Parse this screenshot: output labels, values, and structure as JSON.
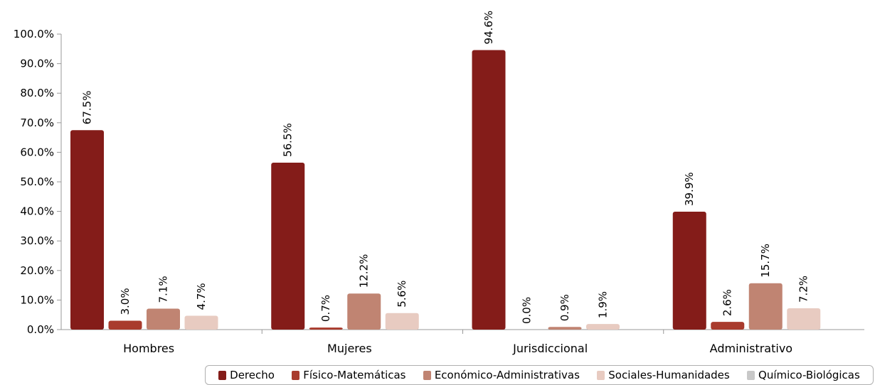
{
  "chart_data": {
    "type": "bar",
    "categories": [
      "Hombres",
      "Mujeres",
      "Jurisdiccional",
      "Administrativo"
    ],
    "series": [
      {
        "name": "Derecho",
        "color": "#841c19",
        "values": [
          67.5,
          56.5,
          94.6,
          39.9
        ],
        "labels": [
          "67.5%",
          "56.5%",
          "94.6%",
          "39.9%"
        ]
      },
      {
        "name": "Físico-Matemáticas",
        "color": "#a93b2d",
        "values": [
          3.0,
          0.7,
          0.0,
          2.6
        ],
        "labels": [
          "3.0%",
          "0.7%",
          "0.0%",
          "2.6%"
        ]
      },
      {
        "name": "Económico-Administrativas",
        "color": "#c08472",
        "values": [
          7.1,
          12.2,
          0.9,
          15.7
        ],
        "labels": [
          "7.1%",
          "12.2%",
          "0.9%",
          "15.7%"
        ]
      },
      {
        "name": "Sociales-Humanidades",
        "color": "#e8cbc1",
        "values": [
          4.7,
          5.6,
          1.9,
          7.2
        ],
        "labels": [
          "4.7%",
          "5.6%",
          "1.9%",
          "7.2%"
        ]
      },
      {
        "name": "Químico-Biológicas",
        "color": "#c8c8c8",
        "values": [
          0,
          0,
          0,
          0
        ],
        "labels": []
      }
    ],
    "yticks": [
      "0.0%",
      "10.0%",
      "20.0%",
      "30.0%",
      "40.0%",
      "50.0%",
      "60.0%",
      "70.0%",
      "80.0%",
      "90.0%",
      "100.0%"
    ],
    "ylim": [
      0,
      100
    ],
    "legend": "bottom"
  }
}
